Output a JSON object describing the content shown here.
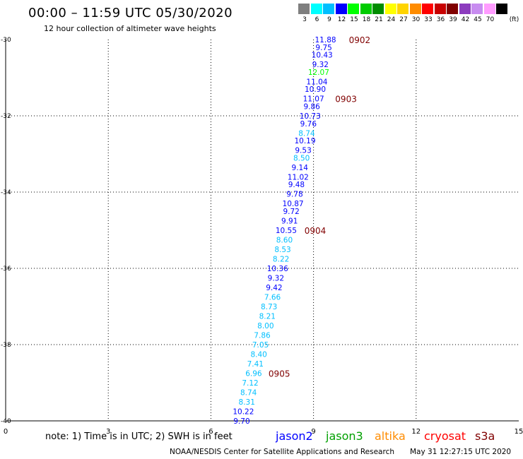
{
  "header": {
    "title": "00:00 – 11:59 UTC 05/30/2020",
    "subtitle": "12 hour collection of altimeter wave heights"
  },
  "color_scale": {
    "unit": "(ft)",
    "bins": [
      {
        "label": "3",
        "color": "#7f7f7f"
      },
      {
        "label": "6",
        "color": "#00ffff"
      },
      {
        "label": "9",
        "color": "#00bfff"
      },
      {
        "label": "12",
        "color": "#0000ff"
      },
      {
        "label": "15",
        "color": "#00ff00"
      },
      {
        "label": "18",
        "color": "#00cc00"
      },
      {
        "label": "21",
        "color": "#008c00"
      },
      {
        "label": "24",
        "color": "#ffff00"
      },
      {
        "label": "27",
        "color": "#ffd400"
      },
      {
        "label": "30",
        "color": "#ff8c00"
      },
      {
        "label": "33",
        "color": "#ff0000"
      },
      {
        "label": "36",
        "color": "#c80000"
      },
      {
        "label": "39",
        "color": "#800000"
      },
      {
        "label": "42",
        "color": "#8c3cbe"
      },
      {
        "label": "45",
        "color": "#c88cf0"
      },
      {
        "label": "70",
        "color": "#ff9cff"
      },
      {
        "label": "",
        "color": "#000000"
      }
    ]
  },
  "chart_data": {
    "type": "scatter",
    "title": "00:00 – 11:59 UTC 05/30/2020",
    "subtitle": "12 hour collection of altimeter wave heights",
    "xlim": [
      0,
      15
    ],
    "ylim": [
      -40,
      -30
    ],
    "x_ticks": [
      "0",
      "3",
      "6",
      "9",
      "12",
      "15"
    ],
    "y_ticks": [
      "-30",
      "-32",
      "-34",
      "-36",
      "-38",
      "-40"
    ],
    "grid": true,
    "points": [
      {
        "x": 9.35,
        "y": -30.0,
        "swh": "11.88",
        "color": "#0000ff"
      },
      {
        "x": 9.3,
        "y": -30.2,
        "swh": "9.75",
        "color": "#0000ff"
      },
      {
        "x": 9.25,
        "y": -30.4,
        "swh": "10.43",
        "color": "#0000ff"
      },
      {
        "x": 9.2,
        "y": -30.65,
        "swh": "9.32",
        "color": "#0000ff"
      },
      {
        "x": 9.15,
        "y": -30.85,
        "swh": "12.07",
        "color": "#00ff00"
      },
      {
        "x": 9.1,
        "y": -31.1,
        "swh": "11.04",
        "color": "#0000ff"
      },
      {
        "x": 9.05,
        "y": -31.3,
        "swh": "10.90",
        "color": "#0000ff"
      },
      {
        "x": 9.0,
        "y": -31.55,
        "swh": "11.07",
        "color": "#0000ff"
      },
      {
        "x": 8.95,
        "y": -31.75,
        "swh": "9.86",
        "color": "#0000ff"
      },
      {
        "x": 8.9,
        "y": -32.0,
        "swh": "10.73",
        "color": "#0000ff"
      },
      {
        "x": 8.85,
        "y": -32.2,
        "swh": "9.76",
        "color": "#0000ff"
      },
      {
        "x": 8.8,
        "y": -32.45,
        "swh": "8.74",
        "color": "#00bfff"
      },
      {
        "x": 8.75,
        "y": -32.65,
        "swh": "10.19",
        "color": "#0000ff"
      },
      {
        "x": 8.7,
        "y": -32.9,
        "swh": "9.53",
        "color": "#0000ff"
      },
      {
        "x": 8.65,
        "y": -33.1,
        "swh": "8.50",
        "color": "#00bfff"
      },
      {
        "x": 8.6,
        "y": -33.35,
        "swh": "9.14",
        "color": "#0000ff"
      },
      {
        "x": 8.55,
        "y": -33.6,
        "swh": "11.02",
        "color": "#0000ff"
      },
      {
        "x": 8.5,
        "y": -33.8,
        "swh": "9.48",
        "color": "#0000ff"
      },
      {
        "x": 8.45,
        "y": -34.05,
        "swh": "9.78",
        "color": "#0000ff"
      },
      {
        "x": 8.4,
        "y": -34.3,
        "swh": "10.87",
        "color": "#0000ff"
      },
      {
        "x": 8.35,
        "y": -34.5,
        "swh": "9.72",
        "color": "#0000ff"
      },
      {
        "x": 8.3,
        "y": -34.75,
        "swh": "9.91",
        "color": "#0000ff"
      },
      {
        "x": 8.2,
        "y": -35.0,
        "swh": "10.55",
        "color": "#0000ff"
      },
      {
        "x": 8.15,
        "y": -35.25,
        "swh": "8.60",
        "color": "#00bfff"
      },
      {
        "x": 8.1,
        "y": -35.5,
        "swh": "8.53",
        "color": "#00bfff"
      },
      {
        "x": 8.05,
        "y": -35.75,
        "swh": "8.22",
        "color": "#00bfff"
      },
      {
        "x": 7.95,
        "y": -36.0,
        "swh": "10.36",
        "color": "#0000ff"
      },
      {
        "x": 7.9,
        "y": -36.25,
        "swh": "9.32",
        "color": "#0000ff"
      },
      {
        "x": 7.85,
        "y": -36.5,
        "swh": "9.42",
        "color": "#0000ff"
      },
      {
        "x": 7.8,
        "y": -36.75,
        "swh": "7.66",
        "color": "#00bfff"
      },
      {
        "x": 7.7,
        "y": -37.0,
        "swh": "8.73",
        "color": "#00bfff"
      },
      {
        "x": 7.65,
        "y": -37.25,
        "swh": "8.21",
        "color": "#00bfff"
      },
      {
        "x": 7.6,
        "y": -37.5,
        "swh": "8.00",
        "color": "#00bfff"
      },
      {
        "x": 7.5,
        "y": -37.75,
        "swh": "7.86",
        "color": "#00bfff"
      },
      {
        "x": 7.45,
        "y": -38.0,
        "swh": "7.05",
        "color": "#00bfff"
      },
      {
        "x": 7.4,
        "y": -38.25,
        "swh": "8.40",
        "color": "#00bfff"
      },
      {
        "x": 7.3,
        "y": -38.5,
        "swh": "7.41",
        "color": "#00bfff"
      },
      {
        "x": 7.25,
        "y": -38.75,
        "swh": "6.96",
        "color": "#00bfff"
      },
      {
        "x": 7.15,
        "y": -39.0,
        "swh": "7.12",
        "color": "#00bfff"
      },
      {
        "x": 7.1,
        "y": -39.25,
        "swh": "8.74",
        "color": "#00bfff"
      },
      {
        "x": 7.05,
        "y": -39.5,
        "swh": "8.31",
        "color": "#00bfff"
      },
      {
        "x": 6.95,
        "y": -39.75,
        "swh": "10.22",
        "color": "#0000ff"
      },
      {
        "x": 6.9,
        "y": -40.0,
        "swh": "9.70",
        "color": "#0000ff"
      }
    ],
    "time_labels": [
      {
        "x": 10.35,
        "y": -30.0,
        "text": "0902"
      },
      {
        "x": 9.95,
        "y": -31.55,
        "text": "0903"
      },
      {
        "x": 9.05,
        "y": -35.0,
        "text": "0904"
      },
      {
        "x": 8.0,
        "y": -38.75,
        "text": "0905"
      }
    ]
  },
  "footer": {
    "note": "note: 1) Time is in UTC; 2) SWH is in feet",
    "satellites": [
      {
        "name": "jason2",
        "color": "#0000ff"
      },
      {
        "name": "jason3",
        "color": "#00a000"
      },
      {
        "name": "altika",
        "color": "#ff8c00"
      },
      {
        "name": "cryosat",
        "color": "#ff0000"
      },
      {
        "name": "s3a",
        "color": "#800000"
      }
    ],
    "credit": "NOAA/NESDIS Center for Satellite Applications and Research",
    "timestamp": "May 31 12:27:15 UTC 2020"
  },
  "time_label_color": "#800000"
}
